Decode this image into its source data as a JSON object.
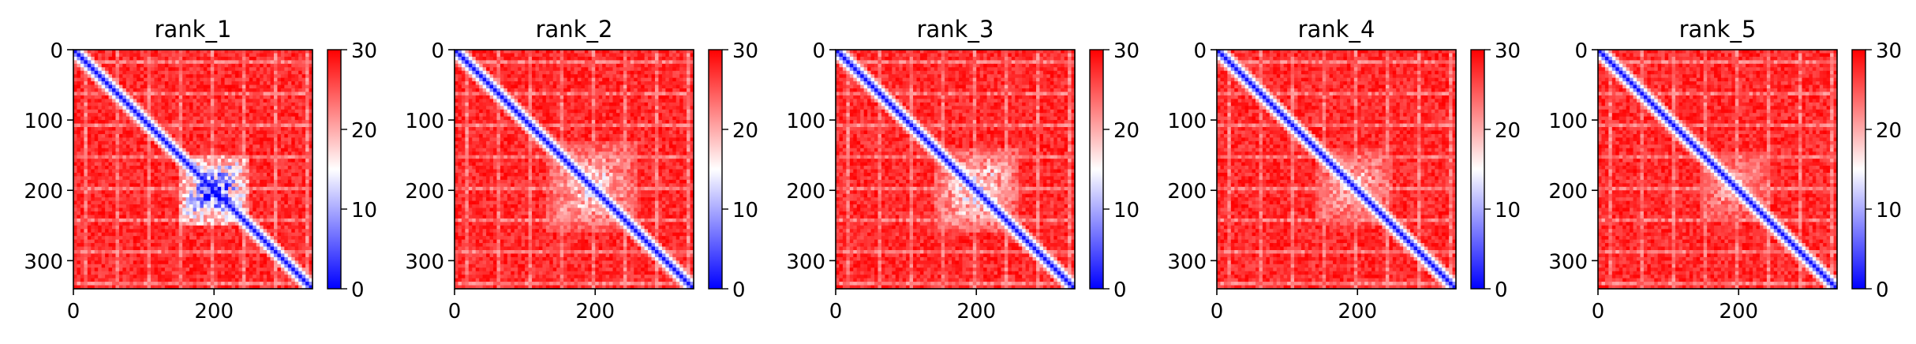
{
  "chart_data": [
    {
      "type": "heatmap",
      "title": "rank_1",
      "x_ticks": [
        0,
        200
      ],
      "y_ticks": [
        0,
        100,
        200,
        300
      ],
      "xlim": [
        0,
        340
      ],
      "ylim": [
        340,
        0
      ],
      "colorbar": {
        "ticks": [
          0,
          10,
          20,
          30
        ],
        "range": [
          0,
          30
        ],
        "colormap": [
          "#0000ff",
          "#ffffff",
          "#ff0000"
        ]
      },
      "patterns": {
        "diagonal_low": true,
        "block_center": 200,
        "block_halfwidth": 50,
        "block_strength": 0.85
      }
    },
    {
      "type": "heatmap",
      "title": "rank_2",
      "x_ticks": [
        0,
        200
      ],
      "y_ticks": [
        0,
        100,
        200,
        300
      ],
      "xlim": [
        0,
        340
      ],
      "ylim": [
        340,
        0
      ],
      "colorbar": {
        "ticks": [
          0,
          10,
          20,
          30
        ],
        "range": [
          0,
          30
        ],
        "colormap": [
          "#0000ff",
          "#ffffff",
          "#ff0000"
        ]
      },
      "patterns": {
        "diagonal_low": true,
        "block_center": 195,
        "block_halfwidth": 65,
        "block_strength": 0.45
      }
    },
    {
      "type": "heatmap",
      "title": "rank_3",
      "x_ticks": [
        0,
        200
      ],
      "y_ticks": [
        0,
        100,
        200,
        300
      ],
      "xlim": [
        0,
        340
      ],
      "ylim": [
        340,
        0
      ],
      "colorbar": {
        "ticks": [
          0,
          10,
          20,
          30
        ],
        "range": [
          0,
          30
        ],
        "colormap": [
          "#0000ff",
          "#ffffff",
          "#ff0000"
        ]
      },
      "patterns": {
        "diagonal_low": true,
        "block_center": 200,
        "block_halfwidth": 60,
        "block_strength": 0.5
      }
    },
    {
      "type": "heatmap",
      "title": "rank_4",
      "x_ticks": [
        0,
        200
      ],
      "y_ticks": [
        0,
        100,
        200,
        300
      ],
      "xlim": [
        0,
        340
      ],
      "ylim": [
        340,
        0
      ],
      "colorbar": {
        "ticks": [
          0,
          10,
          20,
          30
        ],
        "range": [
          0,
          30
        ],
        "colormap": [
          "#0000ff",
          "#ffffff",
          "#ff0000"
        ]
      },
      "patterns": {
        "diagonal_low": true,
        "block_center": 195,
        "block_halfwidth": 55,
        "block_strength": 0.4
      }
    },
    {
      "type": "heatmap",
      "title": "rank_5",
      "x_ticks": [
        0,
        200
      ],
      "y_ticks": [
        0,
        100,
        200,
        300
      ],
      "xlim": [
        0,
        340
      ],
      "ylim": [
        340,
        0
      ],
      "colorbar": {
        "ticks": [
          0,
          10,
          20,
          30
        ],
        "range": [
          0,
          30
        ],
        "colormap": [
          "#0000ff",
          "#ffffff",
          "#ff0000"
        ]
      },
      "patterns": {
        "diagonal_low": true,
        "block_center": 195,
        "block_halfwidth": 50,
        "block_strength": 0.35
      }
    }
  ]
}
